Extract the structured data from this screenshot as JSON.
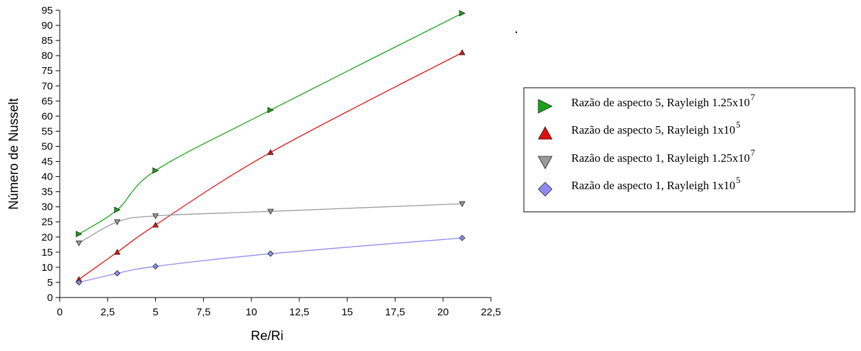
{
  "chart_data": {
    "type": "line",
    "xlabel": "Re/Ri",
    "ylabel": "Número de Nusselt",
    "xlim": [
      0,
      22.5
    ],
    "ylim": [
      0,
      95
    ],
    "xticks": [
      "0",
      "2,5",
      "5",
      "7,5",
      "10",
      "12,5",
      "15",
      "17,5",
      "20",
      "22,5"
    ],
    "yticks": [
      "0",
      "5",
      "10",
      "15",
      "20",
      "25",
      "30",
      "35",
      "40",
      "45",
      "50",
      "55",
      "60",
      "65",
      "70",
      "75",
      "80",
      "85",
      "90",
      "95"
    ],
    "legend_position": "right",
    "x": [
      1,
      3,
      5,
      11,
      21
    ],
    "series": [
      {
        "name": "Razão de aspecto 5, Rayleigh 1.25x10",
        "name_sup": "7",
        "marker": "triangle-right",
        "color": "#17a317",
        "values": [
          21,
          29,
          42,
          62,
          94
        ]
      },
      {
        "name": "Razão de aspecto 5, Rayleigh 1x10",
        "name_sup": "5",
        "marker": "triangle-up",
        "color": "#e01010",
        "values": [
          6,
          15,
          24,
          48,
          81
        ]
      },
      {
        "name": "Razão de aspecto 1, Rayleigh 1.25x10",
        "name_sup": "7",
        "marker": "triangle-down",
        "color": "#9a9a9a",
        "values": [
          18,
          25,
          27,
          28.5,
          31
        ]
      },
      {
        "name": "Razão de aspecto 1, Rayleigh 1x10",
        "name_sup": "5",
        "marker": "diamond",
        "color": "#8c8cf0",
        "values": [
          5,
          8,
          10.3,
          14.5,
          19.7
        ]
      }
    ]
  }
}
